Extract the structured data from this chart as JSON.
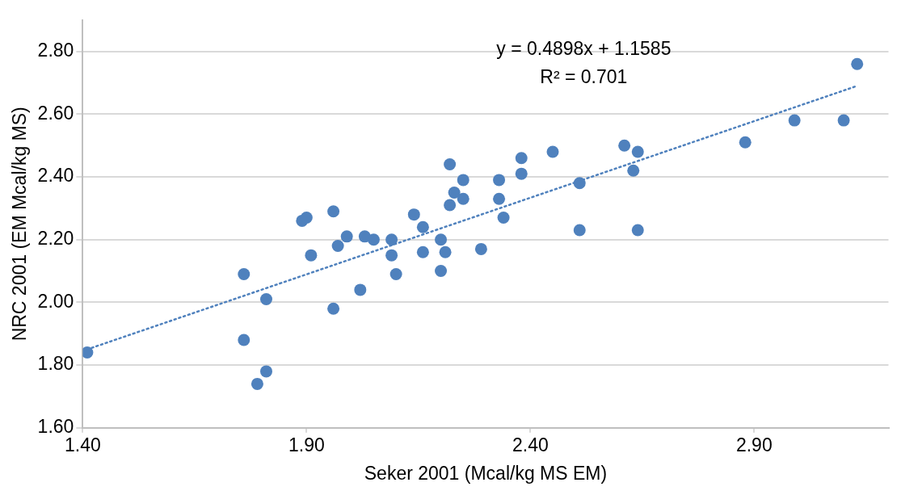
{
  "chart_data": {
    "type": "scatter",
    "xlabel": "Seker 2001 (Mcal/kg MS EM)",
    "ylabel": "NRC 2001 (EM Mcal/kg MS)",
    "annotations": [
      "y = 0.4898x + 1.1585",
      "R² = 0.701"
    ],
    "xlim": [
      1.4,
      3.2
    ],
    "ylim": [
      1.6,
      2.9
    ],
    "xticks": [
      {
        "value": 1.4,
        "label": "1.40"
      },
      {
        "value": 1.9,
        "label": "1.90"
      },
      {
        "value": 2.4,
        "label": "2.40"
      },
      {
        "value": 2.9,
        "label": "2.90"
      }
    ],
    "yticks": [
      {
        "value": 1.6,
        "label": "1.60"
      },
      {
        "value": 1.8,
        "label": "1.80"
      },
      {
        "value": 2.0,
        "label": "2.00"
      },
      {
        "value": 2.2,
        "label": "2.20"
      },
      {
        "value": 2.4,
        "label": "2.40"
      },
      {
        "value": 2.6,
        "label": "2.60"
      },
      {
        "value": 2.8,
        "label": "2.80"
      }
    ],
    "grid": "y",
    "legend": false,
    "series": [
      {
        "type": "scatter",
        "color": "#4f81bd",
        "marker": "circle",
        "x": [
          1.41,
          1.76,
          1.76,
          1.81,
          1.81,
          1.79,
          1.89,
          1.9,
          1.91,
          1.96,
          1.96,
          1.97,
          1.99,
          2.03,
          2.02,
          2.05,
          2.09,
          2.09,
          2.1,
          2.14,
          2.16,
          2.16,
          2.2,
          2.2,
          2.21,
          2.22,
          2.22,
          2.23,
          2.25,
          2.25,
          2.29,
          2.33,
          2.33,
          2.34,
          2.38,
          2.38,
          2.45,
          2.51,
          2.51,
          2.61,
          2.64,
          2.63,
          2.64,
          2.88,
          2.99,
          3.1,
          3.13
        ],
        "values": [
          1.84,
          2.09,
          1.88,
          2.01,
          1.78,
          1.74,
          2.26,
          2.27,
          2.15,
          2.29,
          1.98,
          2.18,
          2.21,
          2.21,
          2.04,
          2.2,
          2.2,
          2.15,
          2.09,
          2.28,
          2.24,
          2.16,
          2.2,
          2.1,
          2.16,
          2.44,
          2.31,
          2.35,
          2.39,
          2.33,
          2.17,
          2.39,
          2.33,
          2.27,
          2.41,
          2.46,
          2.48,
          2.38,
          2.23,
          2.5,
          2.48,
          2.42,
          2.23,
          2.51,
          2.58,
          2.58,
          2.76
        ]
      },
      {
        "type": "line",
        "color": "#4f81bd",
        "line_style": "dotted",
        "marker": "none",
        "x": [
          1.41,
          3.13
        ],
        "values": [
          1.85,
          2.69
        ]
      }
    ]
  }
}
